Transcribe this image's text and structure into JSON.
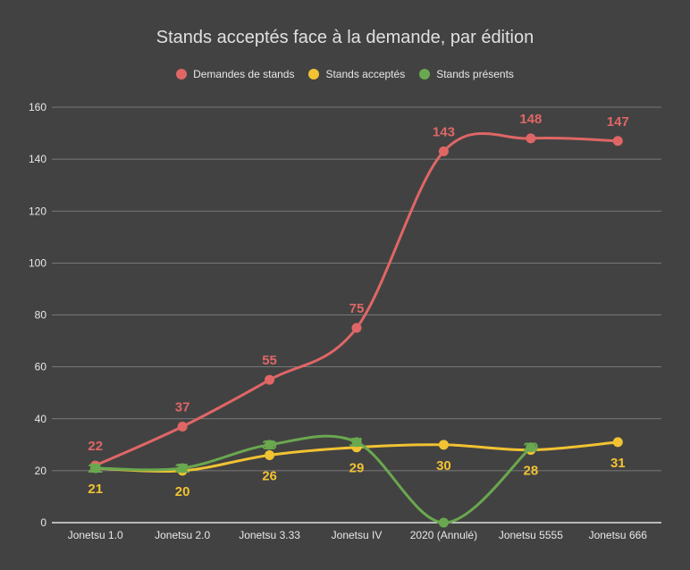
{
  "chart_data": {
    "type": "line",
    "title": "Stands acceptés face à la demande, par édition",
    "categories": [
      "Jonetsu 1.0",
      "Jonetsu 2.0",
      "Jonetsu 3.33",
      "Jonetsu IV",
      "2020 (Annulé)",
      "Jonetsu 5555",
      "Jonetsu 666"
    ],
    "ylim": [
      0,
      160
    ],
    "yticks": [
      0,
      20,
      40,
      60,
      80,
      100,
      120,
      140,
      160
    ],
    "grid": true,
    "legend_position": "top",
    "series": [
      {
        "name": "Demandes de stands",
        "color": "#e06666",
        "values": [
          22,
          37,
          55,
          75,
          143,
          148,
          147
        ],
        "labels": [
          "22",
          "37",
          "55",
          "75",
          "143",
          "148",
          "147"
        ],
        "label_side": "above"
      },
      {
        "name": "Stands acceptés",
        "color": "#f1c232",
        "values": [
          21,
          20,
          26,
          29,
          30,
          28,
          31
        ],
        "labels": [
          "21",
          "20",
          "26",
          "29",
          "30",
          "28",
          "31"
        ],
        "label_side": "below"
      },
      {
        "name": "Stands présents",
        "color": "#6aa84f",
        "values": [
          21,
          21,
          30,
          31,
          0,
          29,
          null
        ],
        "labels": [
          "21",
          "21",
          "30",
          "31",
          "",
          "29",
          ""
        ],
        "label_side": "center"
      }
    ]
  }
}
